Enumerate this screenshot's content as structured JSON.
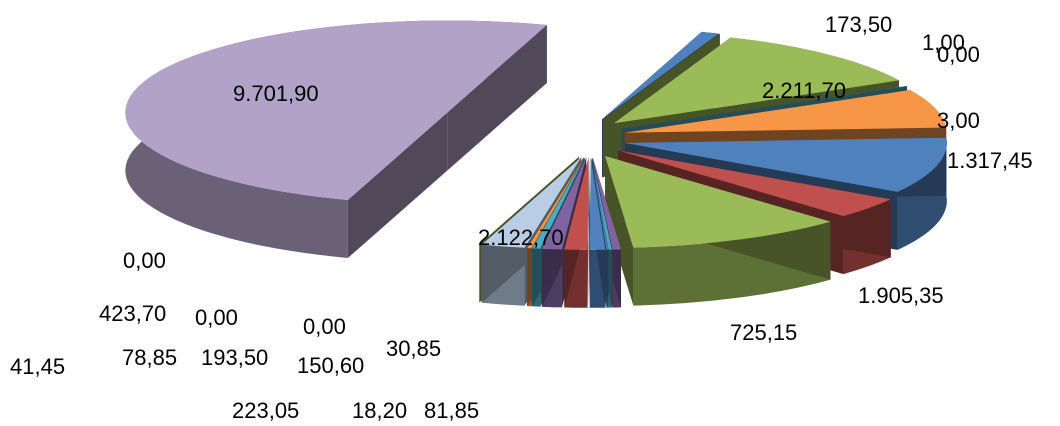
{
  "chart_data": {
    "type": "pie",
    "style": "3d-exploded",
    "title": "",
    "legend": "none",
    "slices": [
      {
        "label": "173,50",
        "value": 173.5,
        "color": "#4F81BD"
      },
      {
        "label": "1,00",
        "value": 1.0,
        "color": "#C0504D"
      },
      {
        "label": "0,00",
        "value": 0.0,
        "color": "#9BBB59"
      },
      {
        "label": "2.211,70",
        "value": 2211.7,
        "color": "#9BBB59"
      },
      {
        "label": "3,00",
        "value": 3.0,
        "color": "#4BACC6"
      },
      {
        "label": "1.317,45",
        "value": 1317.45,
        "color": "#F79646"
      },
      {
        "label": "1.905,35",
        "value": 1905.35,
        "color": "#4F81BD"
      },
      {
        "label": "725,15",
        "value": 725.15,
        "color": "#C0504D"
      },
      {
        "label": "2.122,70",
        "value": 2122.7,
        "color": "#9BBB59"
      },
      {
        "label": "81,85",
        "value": 81.85,
        "color": "#8064A2"
      },
      {
        "label": "30,85",
        "value": 30.85,
        "color": "#4BACC6"
      },
      {
        "label": "18,20",
        "value": 18.2,
        "color": "#4F81BD"
      },
      {
        "label": "150,60",
        "value": 150.6,
        "color": "#4F81BD"
      },
      {
        "label": "0,00",
        "value": 0.0,
        "color": "#C0504D"
      },
      {
        "label": "223,05",
        "value": 223.05,
        "color": "#C0504D"
      },
      {
        "label": "193,50",
        "value": 193.5,
        "color": "#8064A2"
      },
      {
        "label": "78,85",
        "value": 78.85,
        "color": "#4BACC6"
      },
      {
        "label": "41,45",
        "value": 41.45,
        "color": "#F79646"
      },
      {
        "label": "0,00",
        "value": 0.0,
        "color": "#9BBB59"
      },
      {
        "label": "423,70",
        "value": 423.7,
        "color": "#B9CDE5"
      },
      {
        "label": "0,00",
        "value": 0.0,
        "color": "#9BBB59"
      },
      {
        "label": "9.701,90",
        "value": 9701.9,
        "color": "#B3A2C7"
      }
    ]
  }
}
